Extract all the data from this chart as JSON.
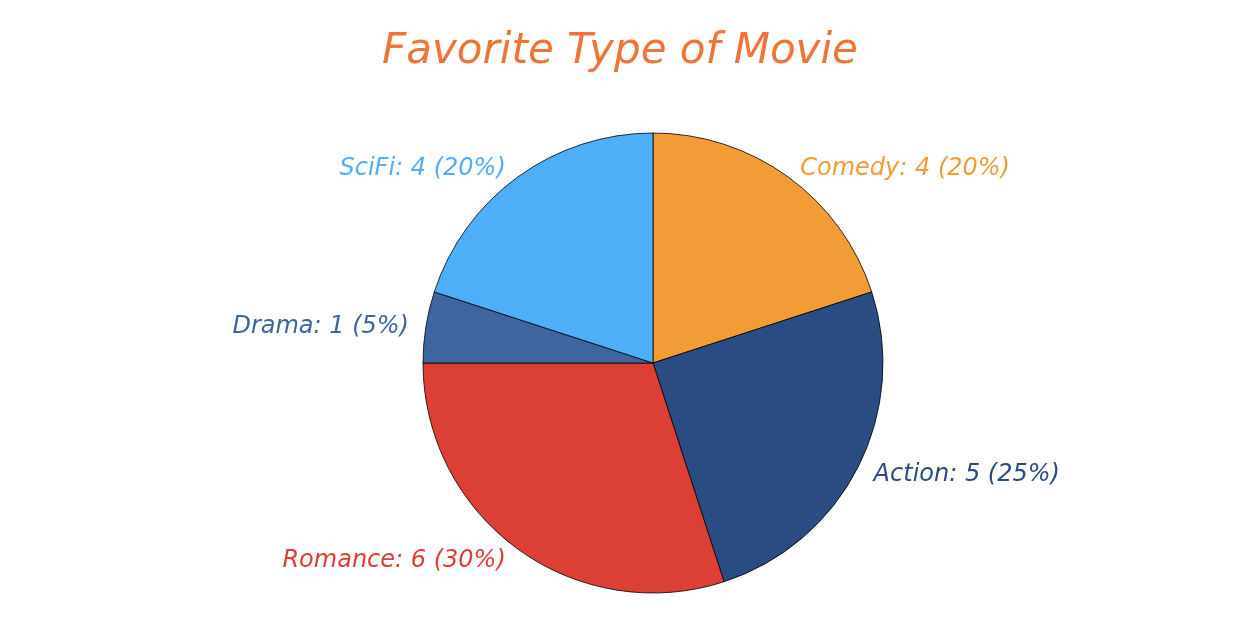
{
  "chart_data": {
    "type": "pie",
    "title": "Favorite Type of Movie",
    "categories": [
      "Comedy",
      "Action",
      "Romance",
      "Drama",
      "SciFi"
    ],
    "values": [
      4,
      5,
      6,
      1,
      4
    ],
    "colors": [
      "#f29c38",
      "#2b4c82",
      "#dc3f36",
      "#3e65a0",
      "#4faef8"
    ],
    "value_labels": [
      "4 (20%)",
      "5 (25%)",
      "6 (30%)",
      "1 (5%)",
      "4 (20%)"
    ],
    "legend": false
  }
}
